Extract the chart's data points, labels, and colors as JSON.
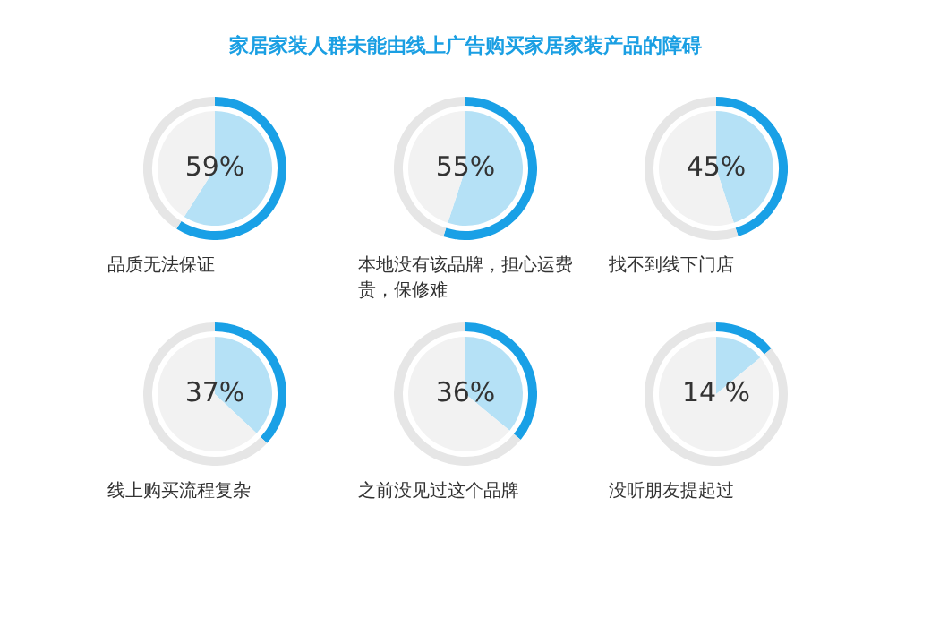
{
  "chart_data": [
    {
      "type": "pie",
      "title": "家居家装人群未能由线上广告购买家居家装产品的障碍",
      "xlabel": "品质无法保证",
      "categories": [
        null,
        null
      ],
      "values": [
        59,
        41
      ],
      "value_labels": [
        "59%",
        null
      ],
      "colors": [
        "#b5e1f6",
        "#f2f2f2"
      ]
    },
    {
      "type": "pie",
      "xlabel": "本地没有该品牌，担心运费贵，保修难",
      "categories": [
        null,
        null
      ],
      "values": [
        55,
        45
      ],
      "value_labels": [
        "55%",
        null
      ],
      "colors": [
        "#b5e1f6",
        "#f2f2f2"
      ]
    },
    {
      "type": "pie",
      "xlabel": "找不到线下门店",
      "categories": [
        null,
        null
      ],
      "values": [
        45,
        55
      ],
      "value_labels": [
        "45%",
        null
      ],
      "colors": [
        "#b5e1f6",
        "#f2f2f2"
      ]
    },
    {
      "type": "pie",
      "xlabel": "线上购买流程复杂",
      "categories": [
        null,
        null
      ],
      "values": [
        37,
        63
      ],
      "value_labels": [
        "37%",
        null
      ],
      "colors": [
        "#b5e1f6",
        "#f2f2f2"
      ]
    },
    {
      "type": "pie",
      "xlabel": "之前没见过这个品牌",
      "categories": [
        null,
        null
      ],
      "values": [
        36,
        64
      ],
      "value_labels": [
        "36%",
        null
      ],
      "colors": [
        "#b5e1f6",
        "#f2f2f2"
      ]
    },
    {
      "type": "pie",
      "xlabel": "没听朋友提起过",
      "categories": [
        null,
        null
      ],
      "values": [
        14,
        86
      ],
      "value_labels": [
        "14 %",
        null
      ],
      "colors": [
        "#b5e1f6",
        "#f2f2f2"
      ]
    }
  ]
}
